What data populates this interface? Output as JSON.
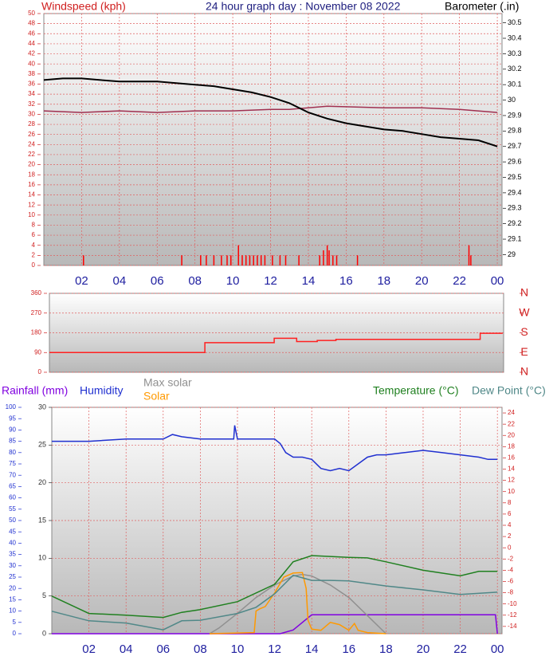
{
  "chart_data": [
    {
      "type": "line",
      "title": "24 hour graph day : November 08 2022",
      "ylabel": "Windspeed (kph)",
      "y2label": "Barometer (.in)",
      "xlim": [
        0,
        24.25
      ],
      "xticks": [
        {
          "value": 2,
          "label": "02"
        },
        {
          "value": 4,
          "label": "04"
        },
        {
          "value": 6,
          "label": "06"
        },
        {
          "value": 8,
          "label": "08"
        },
        10,
        12,
        14,
        16,
        18,
        20,
        22,
        {
          "value": 24,
          "label": "00"
        }
      ],
      "ylim": [
        0,
        50
      ],
      "yticks": [
        0,
        2,
        4,
        6,
        8,
        10,
        12,
        14,
        16,
        18,
        20,
        22,
        24,
        26,
        28,
        30,
        32,
        34,
        36,
        38,
        40,
        42,
        44,
        46,
        48,
        50
      ],
      "y2lim": [
        28.93,
        30.56
      ],
      "y2ticks": [
        29,
        29.1,
        29.2,
        29.3,
        29.4,
        29.5,
        29.6,
        29.7,
        29.8,
        29.9,
        30,
        30.1,
        30.2,
        30.3,
        30.4,
        30.5
      ],
      "grid": true,
      "series": [
        {
          "color": "#ff0000",
          "style": "spikes",
          "axis": "y",
          "x": [
            2.1,
            7.3,
            8.3,
            8.6,
            9.0,
            9.4,
            9.7,
            9.9,
            10.3,
            10.5,
            10.7,
            10.9,
            11.1,
            11.3,
            11.5,
            11.7,
            12.1,
            12.5,
            12.8,
            13.5,
            14.6,
            14.8,
            15.0,
            15.1,
            15.3,
            15.5,
            16.6,
            22.5,
            22.6
          ],
          "values": [
            2,
            2,
            2,
            2,
            2,
            2,
            2,
            2,
            4,
            2,
            2,
            2,
            2,
            2,
            2,
            2,
            2,
            2,
            2,
            2,
            2,
            3,
            4,
            3,
            2,
            2,
            2,
            4,
            2
          ]
        },
        {
          "color": "#a03050",
          "style": "line",
          "axis": "y2",
          "x": [
            0,
            2,
            4,
            6,
            8,
            10,
            12,
            13,
            15,
            18,
            20,
            22,
            24
          ],
          "values": [
            29.93,
            29.92,
            29.93,
            29.92,
            29.93,
            29.93,
            29.94,
            29.94,
            29.96,
            29.95,
            29.95,
            29.94,
            29.92
          ]
        },
        {
          "color": "#000000",
          "style": "line",
          "axis": "y2",
          "x": [
            0,
            1,
            2,
            3,
            4,
            5,
            6,
            7,
            8,
            9,
            10,
            11,
            12,
            13,
            14,
            15,
            16,
            17,
            18,
            19,
            20,
            21,
            22,
            23,
            24
          ],
          "values": [
            30.13,
            30.14,
            30.14,
            30.13,
            30.12,
            30.12,
            30.12,
            30.11,
            30.1,
            30.09,
            30.07,
            30.05,
            30.02,
            29.98,
            29.92,
            29.88,
            29.85,
            29.83,
            29.81,
            29.8,
            29.78,
            29.76,
            29.75,
            29.74,
            29.7
          ]
        }
      ]
    },
    {
      "type": "line",
      "xlim": [
        0,
        24.25
      ],
      "ylim": [
        0,
        360
      ],
      "yticks": [
        0,
        90,
        180,
        270,
        360
      ],
      "y2lim": [
        0,
        360
      ],
      "y2ticks": [
        {
          "value": 360,
          "label": "N"
        },
        {
          "value": 270,
          "label": "W"
        },
        {
          "value": 180,
          "label": "S"
        },
        {
          "value": 90,
          "label": "E"
        },
        {
          "value": 0,
          "label": "N"
        }
      ],
      "grid": true,
      "series": [
        {
          "color": "#ff2020",
          "style": "step",
          "axis": "y",
          "x": [
            0,
            8.3,
            12.0,
            13.2,
            14.3,
            15.3,
            23.0,
            24.2
          ],
          "values": [
            90,
            135,
            155,
            140,
            145,
            150,
            178,
            178
          ]
        }
      ]
    },
    {
      "type": "line",
      "xlim": [
        0,
        24.25
      ],
      "xticks": [
        {
          "value": 2,
          "label": "02"
        },
        {
          "value": 4,
          "label": "04"
        },
        {
          "value": 6,
          "label": "06"
        },
        {
          "value": 8,
          "label": "08"
        },
        10,
        12,
        14,
        16,
        18,
        20,
        22,
        {
          "value": 24,
          "label": "00"
        }
      ],
      "ylim": [
        0,
        30
      ],
      "yticks": [
        0,
        5,
        10,
        15,
        20,
        25,
        30
      ],
      "y2lim": [
        -15.3,
        25
      ],
      "y2ticks": [
        -14,
        -12,
        -10,
        -8,
        -6,
        -4,
        -2,
        0,
        2,
        4,
        6,
        8,
        10,
        12,
        14,
        16,
        18,
        20,
        22,
        24
      ],
      "y3lim": [
        0,
        100
      ],
      "y3ticks": [
        0,
        5,
        10,
        15,
        20,
        25,
        30,
        35,
        40,
        45,
        50,
        55,
        60,
        65,
        70,
        75,
        80,
        85,
        90,
        95,
        100
      ],
      "y4lim": [
        0,
        1000
      ],
      "grid": true,
      "series": [
        {
          "name": "Rainfall (mm)",
          "color": "#8000e0",
          "style": "line",
          "axis": "y",
          "x": [
            0,
            12.3,
            13.0,
            13.5,
            14.0,
            23.9,
            24.0
          ],
          "values": [
            0,
            0,
            0.5,
            1.5,
            2.5,
            2.5,
            0
          ]
        },
        {
          "name": "Humidity",
          "color": "#2030d0",
          "style": "line",
          "axis": "y3",
          "x": [
            0,
            2,
            4,
            5,
            6,
            6.5,
            7,
            8,
            9,
            9.8,
            9.85,
            10,
            11,
            12,
            12.3,
            12.6,
            13,
            13.5,
            14,
            14.5,
            15,
            15.5,
            16,
            16.5,
            17,
            17.5,
            18,
            19,
            20,
            21,
            22,
            23,
            23.5,
            24
          ],
          "values": [
            85,
            85,
            86,
            86,
            86,
            88,
            87,
            86,
            86,
            86,
            92,
            86,
            86,
            86,
            84,
            80,
            78,
            78,
            77,
            73,
            72,
            73,
            72,
            75,
            78,
            79,
            79,
            80,
            81,
            80,
            79,
            78,
            77,
            77
          ]
        },
        {
          "name": "Max solar",
          "color": "#909090",
          "style": "line",
          "axis": "y4",
          "x": [
            8.5,
            9,
            10,
            11,
            12,
            13,
            13.5,
            14,
            15,
            16,
            17,
            18
          ],
          "values": [
            0,
            25,
            90,
            160,
            215,
            255,
            262,
            255,
            215,
            160,
            80,
            0
          ]
        },
        {
          "name": "Solar",
          "color": "#ff9900",
          "style": "line",
          "axis": "y4",
          "x": [
            8.5,
            10.9,
            11.0,
            11.2,
            11.5,
            12.0,
            12.5,
            13.0,
            13.5,
            13.7,
            13.8,
            14.0,
            14.5,
            15.0,
            15.5,
            16.0,
            16.3,
            16.5,
            17.0,
            18.0
          ],
          "values": [
            0,
            5,
            100,
            110,
            120,
            180,
            250,
            268,
            270,
            200,
            60,
            20,
            15,
            50,
            40,
            15,
            45,
            15,
            5,
            0
          ]
        },
        {
          "name": "Temperature (°C)",
          "color": "#208020",
          "style": "line",
          "axis": "y2",
          "x": [
            0,
            2,
            4,
            6,
            7,
            8,
            10,
            12,
            13,
            14,
            16,
            17,
            18,
            20,
            22,
            23,
            24
          ],
          "values": [
            -8.6,
            -11.7,
            -12,
            -12.4,
            -11.5,
            -11,
            -9.6,
            -6.5,
            -2.5,
            -1.4,
            -1.7,
            -1.8,
            -2.5,
            -4,
            -5,
            -4.2,
            -4.2
          ]
        },
        {
          "name": "Dew Point (°C)",
          "color": "#508888",
          "style": "line",
          "axis": "y2",
          "x": [
            0,
            2,
            4,
            6,
            7,
            8,
            10,
            11,
            12,
            13,
            14,
            15,
            16,
            18,
            20,
            22,
            24
          ],
          "values": [
            -11.3,
            -13,
            -13.4,
            -14.6,
            -13,
            -12.9,
            -11.7,
            -10.6,
            -8.2,
            -4.9,
            -5.8,
            -5.8,
            -5.9,
            -6.8,
            -7.5,
            -8.3,
            -7.9
          ]
        }
      ]
    }
  ]
}
